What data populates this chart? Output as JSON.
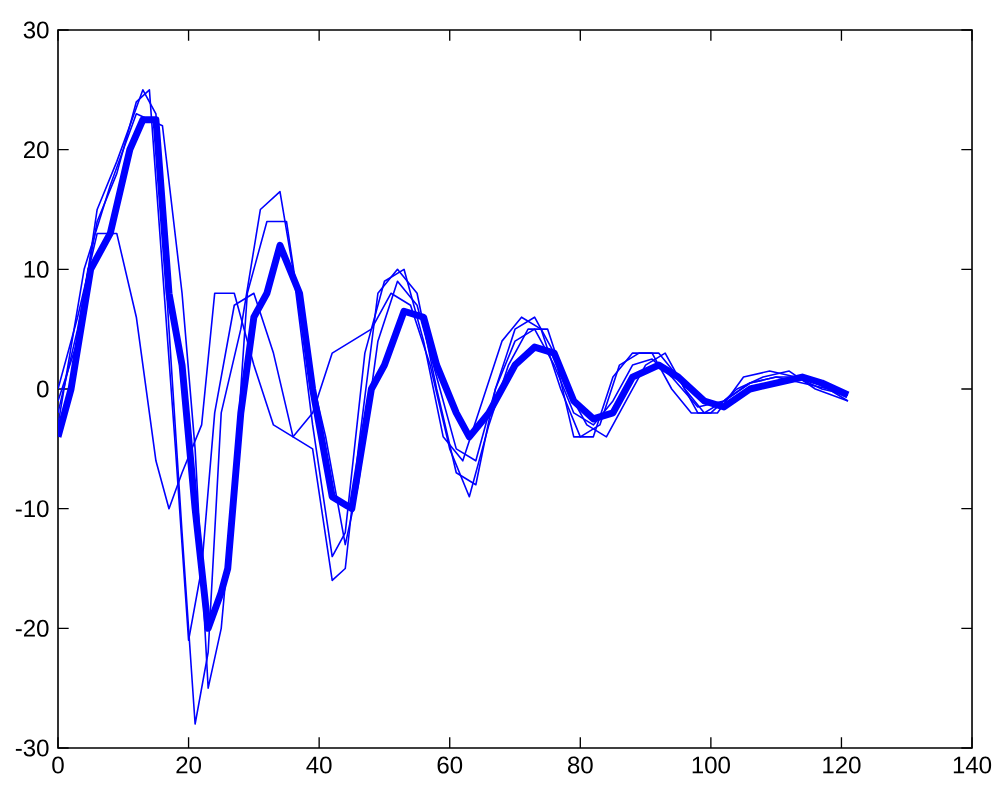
{
  "chart_data": {
    "type": "line",
    "xlim": [
      0,
      140
    ],
    "ylim": [
      -30,
      30
    ],
    "xticks": [
      0,
      20,
      40,
      60,
      80,
      100,
      120,
      140
    ],
    "yticks": [
      -30,
      -20,
      -10,
      0,
      10,
      20,
      30
    ],
    "grid": false,
    "marker": "none",
    "line_style": "solid",
    "series": [
      {
        "color": "#0000ff",
        "x": [
          0,
          2,
          5,
          8,
          11,
          13,
          15,
          17,
          19,
          21,
          23,
          25,
          26,
          28,
          30,
          32,
          34,
          37,
          39,
          42,
          45,
          48,
          50,
          53,
          56,
          58,
          61,
          63,
          66,
          70,
          73,
          76,
          79,
          82,
          85,
          88,
          92,
          95,
          99,
          102,
          106,
          110,
          114,
          117,
          121
        ],
        "values": [
          -4,
          0,
          10,
          13,
          20,
          22.5,
          22.5,
          8,
          2,
          -10,
          -20,
          -17,
          -15,
          -2,
          6,
          8,
          12,
          8,
          0,
          -9,
          -10,
          0,
          2,
          6.5,
          6,
          2,
          -2,
          -4,
          -2,
          2,
          3.5,
          3,
          -1,
          -2.5,
          -2,
          1,
          2,
          1,
          -1,
          -1.5,
          0,
          0.5,
          1,
          0.5,
          -0.5
        ]
      },
      {
        "color": "#0000ff",
        "x": [
          0,
          3,
          6,
          9,
          12,
          14,
          16,
          18,
          20,
          22,
          24,
          27,
          30,
          33,
          36,
          39,
          42,
          44,
          46,
          49,
          52,
          55,
          58,
          61,
          64,
          67,
          70,
          73,
          76,
          79,
          82,
          85,
          88,
          91,
          94,
          97,
          100,
          104,
          108,
          112,
          116,
          121
        ],
        "values": [
          -2,
          5,
          14,
          18,
          24,
          25,
          10,
          -5,
          -21,
          -15,
          -2,
          7,
          8,
          3,
          -4,
          -5,
          -16,
          -15,
          -5,
          8,
          10,
          8,
          0,
          -7,
          -8,
          0,
          5,
          6,
          3,
          -4,
          -4,
          1,
          3,
          3,
          0,
          -2,
          -2,
          0,
          1,
          1.5,
          0,
          -1
        ]
      },
      {
        "color": "#0000ff",
        "x": [
          0,
          3,
          6,
          9,
          13,
          15,
          17,
          19,
          21,
          23,
          25,
          28,
          31,
          34,
          36,
          39,
          42,
          44,
          47,
          50,
          53,
          56,
          59,
          62,
          65,
          68,
          71,
          74,
          77,
          80,
          83,
          86,
          89,
          92,
          95,
          98,
          101,
          105,
          109,
          113,
          117,
          121
        ],
        "values": [
          -1,
          4,
          15,
          19,
          25,
          23,
          5,
          -12,
          -28,
          -22,
          -2,
          5,
          15,
          16.5,
          10,
          -3,
          -14,
          -12,
          3,
          9,
          10,
          4,
          -4,
          -6,
          -1,
          4,
          6,
          5,
          0,
          -4,
          -3,
          2,
          3,
          3,
          1,
          -2,
          -2,
          1,
          1.5,
          1,
          0,
          -0.5
        ]
      },
      {
        "color": "#0000ff",
        "x": [
          0,
          3,
          6,
          9,
          12,
          15,
          17,
          19,
          22,
          24,
          27,
          30,
          33,
          36,
          39,
          42,
          45,
          48,
          51,
          54,
          57,
          60,
          63,
          66,
          69,
          72,
          75,
          78,
          81,
          84,
          87,
          90,
          93,
          96,
          99,
          102,
          106,
          110,
          114,
          118,
          121
        ],
        "values": [
          0,
          6,
          13,
          13,
          6,
          -6,
          -10,
          -7,
          -3,
          8,
          8,
          2,
          -3,
          -4,
          -2,
          3,
          4,
          5,
          8,
          7,
          2,
          -5,
          -9,
          -3,
          2,
          5,
          5,
          0,
          -3,
          -4,
          -1,
          2,
          3,
          0,
          -2,
          -1,
          0.5,
          1,
          1,
          0,
          -1
        ]
      },
      {
        "color": "#0000ff",
        "x": [
          0,
          4,
          8,
          12,
          16,
          19,
          21,
          23,
          25,
          27,
          29,
          32,
          35,
          38,
          41,
          44,
          46,
          49,
          52,
          55,
          58,
          61,
          64,
          67,
          70,
          73,
          76,
          79,
          82,
          85,
          88,
          91,
          94,
          98,
          102,
          106,
          110,
          114,
          118,
          121
        ],
        "values": [
          -3,
          10,
          17,
          23,
          22,
          8,
          -5,
          -25,
          -20,
          -8,
          8,
          14,
          14,
          3,
          -4,
          -13,
          -8,
          4,
          9,
          7,
          1,
          -5,
          -6,
          0,
          4,
          5,
          2,
          -2,
          -3,
          -1,
          2,
          2.5,
          1,
          -1.5,
          -1,
          0.5,
          1,
          0.5,
          0,
          -0.5
        ]
      }
    ]
  }
}
